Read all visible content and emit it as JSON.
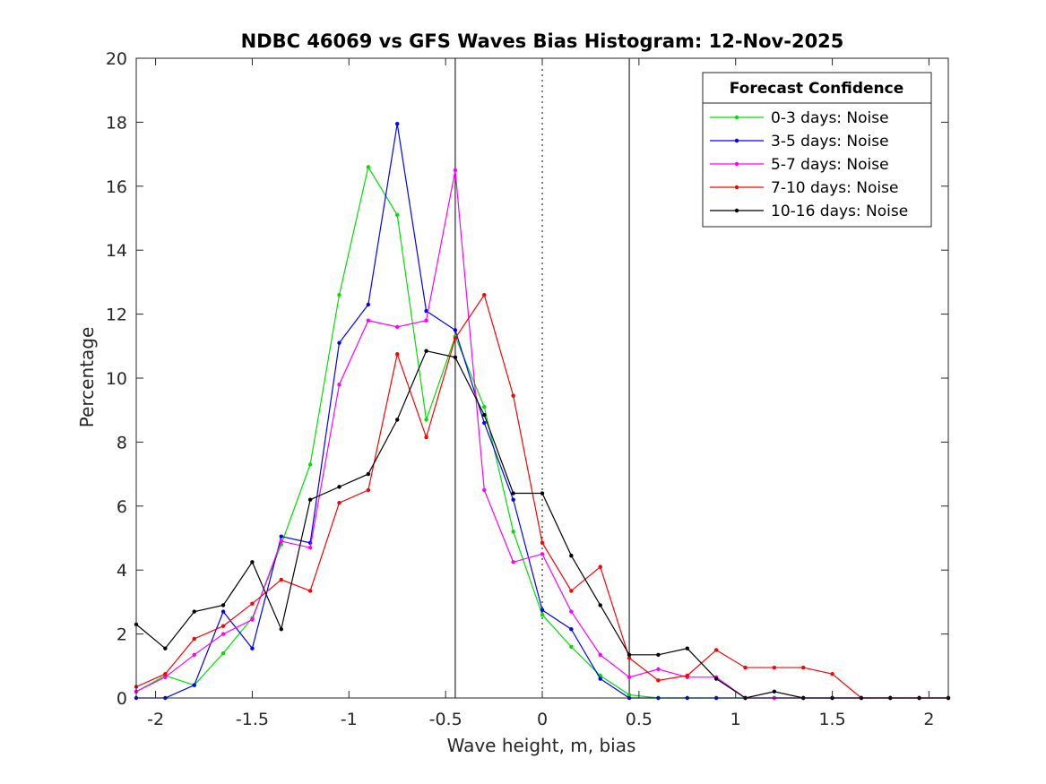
{
  "chart_data": {
    "type": "line",
    "title": "NDBC 46069 vs GFS Waves Bias Histogram: 12-Nov-2025",
    "xlabel": "Wave height, m, bias",
    "ylabel": "Percentage",
    "xlim": [
      -2.1,
      2.1
    ],
    "ylim": [
      0,
      20
    ],
    "xticks": [
      -2,
      -1.5,
      -1,
      -0.5,
      0,
      0.5,
      1,
      1.5,
      2
    ],
    "xtick_labels": [
      "-2",
      "-1.5",
      "-1",
      "-0.5",
      "0",
      "0.5",
      "1",
      "1.5",
      "2"
    ],
    "yticks": [
      0,
      2,
      4,
      6,
      8,
      10,
      12,
      14,
      16,
      18,
      20
    ],
    "ytick_labels": [
      "0",
      "2",
      "4",
      "6",
      "8",
      "10",
      "12",
      "14",
      "16",
      "18",
      "20"
    ],
    "grid": false,
    "vertical_lines": [
      {
        "x": -0.45,
        "style": "solid"
      },
      {
        "x": 0,
        "style": "dotted"
      },
      {
        "x": 0.45,
        "style": "solid"
      }
    ],
    "legend": {
      "title": "Forecast Confidence",
      "placement": "top-right"
    },
    "x": [
      -2.1,
      -1.95,
      -1.8,
      -1.65,
      -1.5,
      -1.35,
      -1.2,
      -1.05,
      -0.9,
      -0.75,
      -0.6,
      -0.45,
      -0.3,
      -0.15,
      0,
      0.15,
      0.3,
      0.45,
      0.6,
      0.75,
      0.9,
      1.05,
      1.2,
      1.35,
      1.5,
      1.65,
      1.8,
      1.95,
      2.1
    ],
    "series": [
      {
        "name": "0-3 days: Noise",
        "color": "#00e000",
        "values": [
          0.2,
          0.7,
          0.4,
          1.4,
          2.5,
          4.8,
          7.3,
          12.6,
          16.6,
          15.1,
          8.7,
          11.3,
          9.1,
          5.2,
          2.6,
          1.6,
          0.7,
          0.1,
          0,
          0,
          0,
          0,
          0,
          0,
          0,
          0,
          0,
          0,
          0
        ]
      },
      {
        "name": "3-5 days: Noise",
        "color": "#0000ff",
        "values": [
          0,
          0,
          0.4,
          2.7,
          1.55,
          5.05,
          4.85,
          11.1,
          12.3,
          17.95,
          12.1,
          11.5,
          8.6,
          6.2,
          2.75,
          2.15,
          0.6,
          0,
          0,
          0,
          0,
          0,
          0,
          0,
          0,
          0,
          0,
          0,
          0
        ]
      },
      {
        "name": "5-7 days: Noise",
        "color": "#ff00ff",
        "values": [
          0.2,
          0.65,
          1.35,
          2.0,
          2.45,
          4.9,
          4.7,
          9.8,
          11.8,
          11.6,
          11.8,
          16.5,
          6.5,
          4.25,
          4.5,
          2.7,
          1.35,
          0.65,
          0.9,
          0.65,
          0.65,
          0,
          0,
          0,
          0,
          0,
          0,
          0,
          0
        ]
      },
      {
        "name": "7-10 days: Noise",
        "color": "#ff0000",
        "values": [
          0.35,
          0.75,
          1.85,
          2.25,
          2.95,
          3.7,
          3.35,
          6.1,
          6.5,
          10.75,
          8.15,
          11.25,
          12.6,
          9.45,
          4.85,
          3.35,
          4.1,
          1.25,
          0.55,
          0.7,
          1.5,
          0.95,
          0.95,
          0.95,
          0.75,
          0,
          0,
          0,
          0
        ]
      },
      {
        "name": "10-16 days: Noise",
        "color": "#000000",
        "values": [
          2.3,
          1.55,
          2.7,
          2.9,
          4.25,
          2.15,
          6.2,
          6.6,
          7.0,
          8.7,
          10.85,
          10.65,
          8.85,
          6.4,
          6.4,
          4.45,
          2.9,
          1.35,
          1.35,
          1.55,
          0.6,
          0,
          0.2,
          0,
          0,
          0,
          0,
          0,
          0
        ]
      }
    ]
  }
}
